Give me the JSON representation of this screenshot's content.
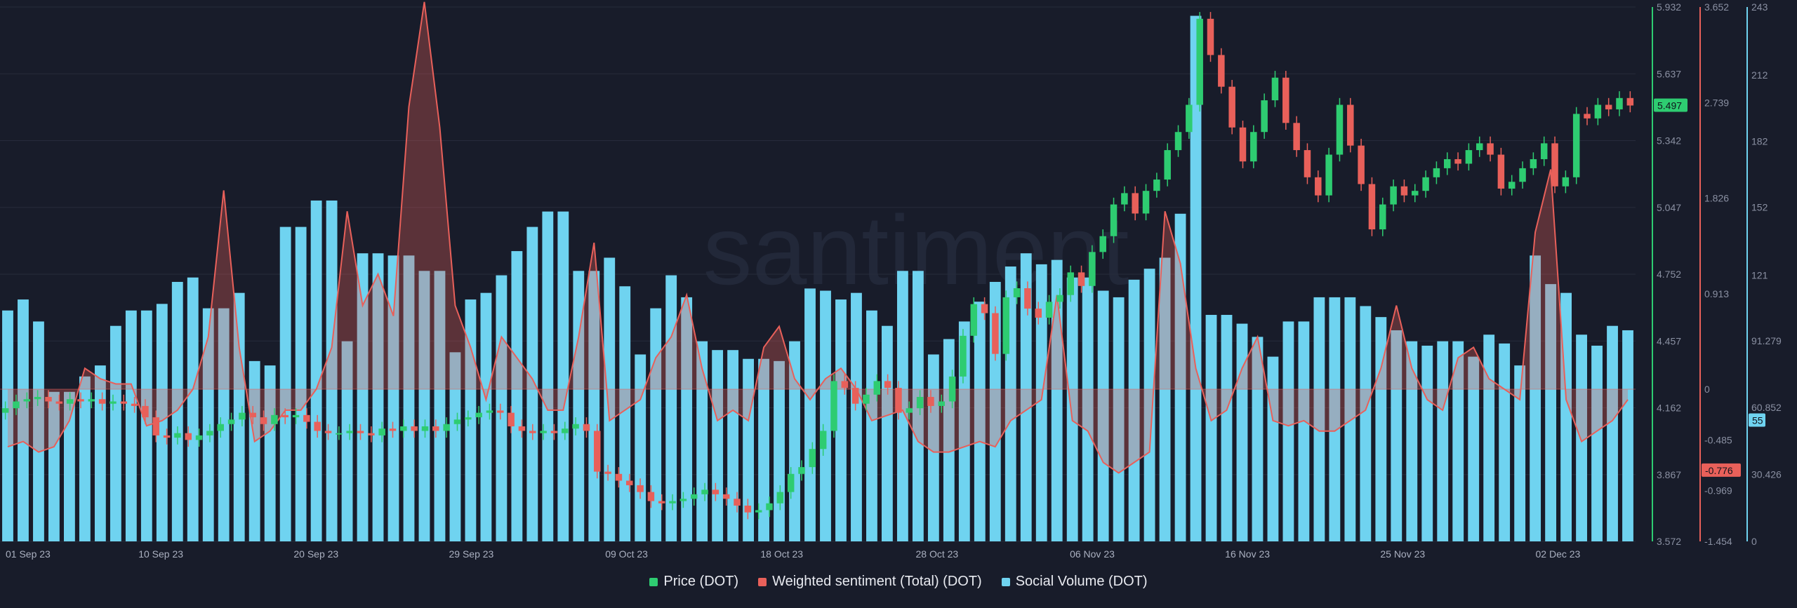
{
  "colors": {
    "background": "#181c2a",
    "price_up": "#2ecc71",
    "price_down": "#e8605a",
    "sentiment": "#e8605a",
    "social": "#6fd3f0",
    "grid": "#262b3b",
    "axis_text": "#8a90a2"
  },
  "watermark": "santiment",
  "chart_data": {
    "type": "bar",
    "x_labels": [
      "01 Sep 23",
      "10 Sep 23",
      "20 Sep 23",
      "29 Sep 23",
      "09 Oct 23",
      "18 Oct 23",
      "28 Oct 23",
      "06 Nov 23",
      "16 Nov 23",
      "25 Nov 23",
      "02 Dec 23"
    ],
    "legend": [
      {
        "name": "Price (DOT)",
        "color": "#2ecc71"
      },
      {
        "name": "Weighted sentiment (Total) (DOT)",
        "color": "#e8605a"
      },
      {
        "name": "Social Volume (DOT)",
        "color": "#6fd3f0"
      }
    ],
    "axes": {
      "price": {
        "ticks": [
          "5.932",
          "5.637",
          "5.342",
          "5.047",
          "4.752",
          "4.457",
          "4.162",
          "3.867",
          "3.572"
        ],
        "min": 3.572,
        "max": 5.932,
        "current": "5.497",
        "color": "#2ecc71"
      },
      "sentiment": {
        "ticks": [
          "3.652",
          "2.739",
          "1.826",
          "0.913",
          "0",
          "-0.485",
          "-0.969",
          "-1.454"
        ],
        "min": -1.454,
        "max": 3.652,
        "current": "-0.776",
        "color": "#e8605a"
      },
      "social": {
        "ticks": [
          "243",
          "212",
          "182",
          "152",
          "121",
          "91.279",
          "60.852",
          "30.426",
          "0"
        ],
        "min": 0,
        "max": 243,
        "current": "55",
        "color": "#6fd3f0"
      }
    },
    "social_volume": [
      105,
      110,
      100,
      68,
      68,
      75,
      80,
      98,
      105,
      105,
      108,
      118,
      120,
      106,
      106,
      113,
      82,
      80,
      143,
      143,
      155,
      155,
      91,
      131,
      131,
      130,
      130,
      123,
      123,
      86,
      110,
      113,
      121,
      132,
      143,
      150,
      150,
      123,
      123,
      129,
      116,
      85,
      106,
      121,
      111,
      91,
      87,
      87,
      83,
      83,
      82,
      91,
      115,
      114,
      110,
      113,
      105,
      98,
      123,
      123,
      85,
      92,
      100,
      109,
      118,
      125,
      131,
      126,
      128,
      120,
      120,
      114,
      111,
      119,
      124,
      129,
      149,
      239,
      103,
      103,
      99,
      93,
      84,
      100,
      100,
      111,
      111,
      111,
      107,
      102,
      96,
      91,
      89,
      91,
      91,
      84,
      94,
      90,
      80,
      130,
      117,
      113,
      94,
      89,
      98,
      96
    ],
    "sentiment": [
      -0.55,
      -0.5,
      -0.6,
      -0.55,
      -0.3,
      0.2,
      0.1,
      0.05,
      0.05,
      -0.35,
      -0.3,
      -0.2,
      0.0,
      0.5,
      1.9,
      0.4,
      -0.5,
      -0.4,
      -0.2,
      -0.2,
      0.0,
      0.4,
      1.7,
      0.8,
      1.1,
      0.7,
      2.7,
      3.7,
      2.5,
      0.8,
      0.4,
      -0.1,
      0.5,
      0.3,
      0.1,
      -0.2,
      -0.2,
      0.5,
      1.4,
      -0.3,
      -0.2,
      -0.1,
      0.3,
      0.5,
      0.9,
      0.2,
      -0.3,
      -0.2,
      -0.3,
      0.4,
      0.6,
      0.1,
      -0.1,
      0.1,
      0.2,
      0.0,
      -0.3,
      -0.25,
      -0.2,
      -0.5,
      -0.6,
      -0.6,
      -0.55,
      -0.5,
      -0.55,
      -0.3,
      -0.2,
      -0.1,
      0.9,
      -0.3,
      -0.4,
      -0.7,
      -0.8,
      -0.7,
      -0.6,
      1.7,
      1.2,
      0.2,
      -0.3,
      -0.2,
      0.2,
      0.5,
      -0.3,
      -0.35,
      -0.3,
      -0.4,
      -0.4,
      -0.3,
      -0.2,
      0.2,
      0.8,
      0.2,
      -0.1,
      -0.2,
      0.3,
      0.4,
      0.1,
      0.0,
      -0.1,
      1.5,
      2.1,
      -0.1,
      -0.5,
      -0.4,
      -0.3,
      -0.1
    ],
    "candles": [
      {
        "o": 4.14,
        "c": 4.16
      },
      {
        "o": 4.16,
        "c": 4.19
      },
      {
        "o": 4.19,
        "c": 4.2
      },
      {
        "o": 4.2,
        "c": 4.21
      },
      {
        "o": 4.21,
        "c": 4.19
      },
      {
        "o": 4.19,
        "c": 4.18
      },
      {
        "o": 4.18,
        "c": 4.2
      },
      {
        "o": 4.2,
        "c": 4.19
      },
      {
        "o": 4.19,
        "c": 4.2
      },
      {
        "o": 4.2,
        "c": 4.18
      },
      {
        "o": 4.18,
        "c": 4.19
      },
      {
        "o": 4.19,
        "c": 4.18
      },
      {
        "o": 4.18,
        "c": 4.17
      },
      {
        "o": 4.17,
        "c": 4.12
      },
      {
        "o": 4.12,
        "c": 4.04
      },
      {
        "o": 4.04,
        "c": 4.03
      },
      {
        "o": 4.03,
        "c": 4.05
      },
      {
        "o": 4.05,
        "c": 4.02
      },
      {
        "o": 4.02,
        "c": 4.04
      },
      {
        "o": 4.04,
        "c": 4.06
      },
      {
        "o": 4.06,
        "c": 4.09
      },
      {
        "o": 4.09,
        "c": 4.11
      },
      {
        "o": 4.11,
        "c": 4.14
      },
      {
        "o": 4.14,
        "c": 4.12
      },
      {
        "o": 4.12,
        "c": 4.09
      },
      {
        "o": 4.09,
        "c": 4.13
      },
      {
        "o": 4.13,
        "c": 4.12
      },
      {
        "o": 4.12,
        "c": 4.13
      },
      {
        "o": 4.13,
        "c": 4.1
      },
      {
        "o": 4.1,
        "c": 4.06
      },
      {
        "o": 4.06,
        "c": 4.05
      },
      {
        "o": 4.05,
        "c": 4.05
      },
      {
        "o": 4.05,
        "c": 4.06
      },
      {
        "o": 4.06,
        "c": 4.05
      },
      {
        "o": 4.05,
        "c": 4.04
      },
      {
        "o": 4.04,
        "c": 4.07
      },
      {
        "o": 4.07,
        "c": 4.06
      },
      {
        "o": 4.06,
        "c": 4.08
      },
      {
        "o": 4.08,
        "c": 4.06
      },
      {
        "o": 4.06,
        "c": 4.08
      },
      {
        "o": 4.08,
        "c": 4.06
      },
      {
        "o": 4.06,
        "c": 4.09
      },
      {
        "o": 4.09,
        "c": 4.11
      },
      {
        "o": 4.11,
        "c": 4.12
      },
      {
        "o": 4.12,
        "c": 4.14
      },
      {
        "o": 4.14,
        "c": 4.15
      },
      {
        "o": 4.15,
        "c": 4.14
      },
      {
        "o": 4.14,
        "c": 4.08
      },
      {
        "o": 4.08,
        "c": 4.06
      },
      {
        "o": 4.06,
        "c": 4.05
      },
      {
        "o": 4.05,
        "c": 4.06
      },
      {
        "o": 4.06,
        "c": 4.05
      },
      {
        "o": 4.05,
        "c": 4.07
      },
      {
        "o": 4.07,
        "c": 4.09
      },
      {
        "o": 4.09,
        "c": 4.06
      },
      {
        "o": 4.06,
        "c": 3.88
      },
      {
        "o": 3.88,
        "c": 3.87
      },
      {
        "o": 3.87,
        "c": 3.84
      },
      {
        "o": 3.84,
        "c": 3.82
      },
      {
        "o": 3.82,
        "c": 3.79
      },
      {
        "o": 3.79,
        "c": 3.75
      },
      {
        "o": 3.75,
        "c": 3.74
      },
      {
        "o": 3.74,
        "c": 3.75
      },
      {
        "o": 3.75,
        "c": 3.76
      },
      {
        "o": 3.76,
        "c": 3.78
      },
      {
        "o": 3.78,
        "c": 3.8
      },
      {
        "o": 3.8,
        "c": 3.78
      },
      {
        "o": 3.78,
        "c": 3.76
      },
      {
        "o": 3.76,
        "c": 3.73
      },
      {
        "o": 3.73,
        "c": 3.7
      },
      {
        "o": 3.7,
        "c": 3.71
      },
      {
        "o": 3.71,
        "c": 3.74
      },
      {
        "o": 3.74,
        "c": 3.79
      },
      {
        "o": 3.79,
        "c": 3.87
      },
      {
        "o": 3.87,
        "c": 3.9
      },
      {
        "o": 3.9,
        "c": 3.98
      },
      {
        "o": 3.98,
        "c": 4.06
      },
      {
        "o": 4.06,
        "c": 4.28
      },
      {
        "o": 4.28,
        "c": 4.25
      },
      {
        "o": 4.25,
        "c": 4.18
      },
      {
        "o": 4.18,
        "c": 4.22
      },
      {
        "o": 4.22,
        "c": 4.28
      },
      {
        "o": 4.28,
        "c": 4.25
      },
      {
        "o": 4.25,
        "c": 4.14
      },
      {
        "o": 4.14,
        "c": 4.16
      },
      {
        "o": 4.16,
        "c": 4.21
      },
      {
        "o": 4.21,
        "c": 4.17
      },
      {
        "o": 4.17,
        "c": 4.19
      },
      {
        "o": 4.19,
        "c": 4.3
      },
      {
        "o": 4.3,
        "c": 4.48
      },
      {
        "o": 4.48,
        "c": 4.62
      },
      {
        "o": 4.62,
        "c": 4.58
      },
      {
        "o": 4.58,
        "c": 4.4
      },
      {
        "o": 4.4,
        "c": 4.65
      },
      {
        "o": 4.65,
        "c": 4.69
      },
      {
        "o": 4.69,
        "c": 4.6
      },
      {
        "o": 4.6,
        "c": 4.56
      },
      {
        "o": 4.56,
        "c": 4.63
      },
      {
        "o": 4.63,
        "c": 4.66
      },
      {
        "o": 4.66,
        "c": 4.76
      },
      {
        "o": 4.76,
        "c": 4.7
      },
      {
        "o": 4.7,
        "c": 4.85
      },
      {
        "o": 4.85,
        "c": 4.92
      },
      {
        "o": 4.92,
        "c": 5.06
      },
      {
        "o": 5.06,
        "c": 5.11
      },
      {
        "o": 5.11,
        "c": 5.02
      },
      {
        "o": 5.02,
        "c": 5.12
      },
      {
        "o": 5.12,
        "c": 5.17
      },
      {
        "o": 5.17,
        "c": 5.3
      },
      {
        "o": 5.3,
        "c": 5.38
      },
      {
        "o": 5.38,
        "c": 5.5
      },
      {
        "o": 5.5,
        "c": 5.88
      },
      {
        "o": 5.88,
        "c": 5.72
      },
      {
        "o": 5.72,
        "c": 5.58
      },
      {
        "o": 5.58,
        "c": 5.4
      },
      {
        "o": 5.4,
        "c": 5.25
      },
      {
        "o": 5.25,
        "c": 5.38
      },
      {
        "o": 5.38,
        "c": 5.52
      },
      {
        "o": 5.52,
        "c": 5.62
      },
      {
        "o": 5.62,
        "c": 5.42
      },
      {
        "o": 5.42,
        "c": 5.3
      },
      {
        "o": 5.3,
        "c": 5.18
      },
      {
        "o": 5.18,
        "c": 5.1
      },
      {
        "o": 5.1,
        "c": 5.28
      },
      {
        "o": 5.28,
        "c": 5.5
      },
      {
        "o": 5.5,
        "c": 5.32
      },
      {
        "o": 5.32,
        "c": 5.15
      },
      {
        "o": 5.15,
        "c": 4.95
      },
      {
        "o": 4.95,
        "c": 5.06
      },
      {
        "o": 5.06,
        "c": 5.14
      },
      {
        "o": 5.14,
        "c": 5.1
      },
      {
        "o": 5.1,
        "c": 5.12
      },
      {
        "o": 5.12,
        "c": 5.18
      },
      {
        "o": 5.18,
        "c": 5.22
      },
      {
        "o": 5.22,
        "c": 5.26
      },
      {
        "o": 5.26,
        "c": 5.24
      },
      {
        "o": 5.24,
        "c": 5.3
      },
      {
        "o": 5.3,
        "c": 5.33
      },
      {
        "o": 5.33,
        "c": 5.28
      },
      {
        "o": 5.28,
        "c": 5.13
      },
      {
        "o": 5.13,
        "c": 5.16
      },
      {
        "o": 5.16,
        "c": 5.22
      },
      {
        "o": 5.22,
        "c": 5.26
      },
      {
        "o": 5.26,
        "c": 5.33
      },
      {
        "o": 5.33,
        "c": 5.14
      },
      {
        "o": 5.14,
        "c": 5.18
      },
      {
        "o": 5.18,
        "c": 5.46
      },
      {
        "o": 5.46,
        "c": 5.44
      },
      {
        "o": 5.44,
        "c": 5.5
      },
      {
        "o": 5.5,
        "c": 5.48
      },
      {
        "o": 5.48,
        "c": 5.53
      },
      {
        "o": 5.53,
        "c": 5.497
      }
    ]
  }
}
